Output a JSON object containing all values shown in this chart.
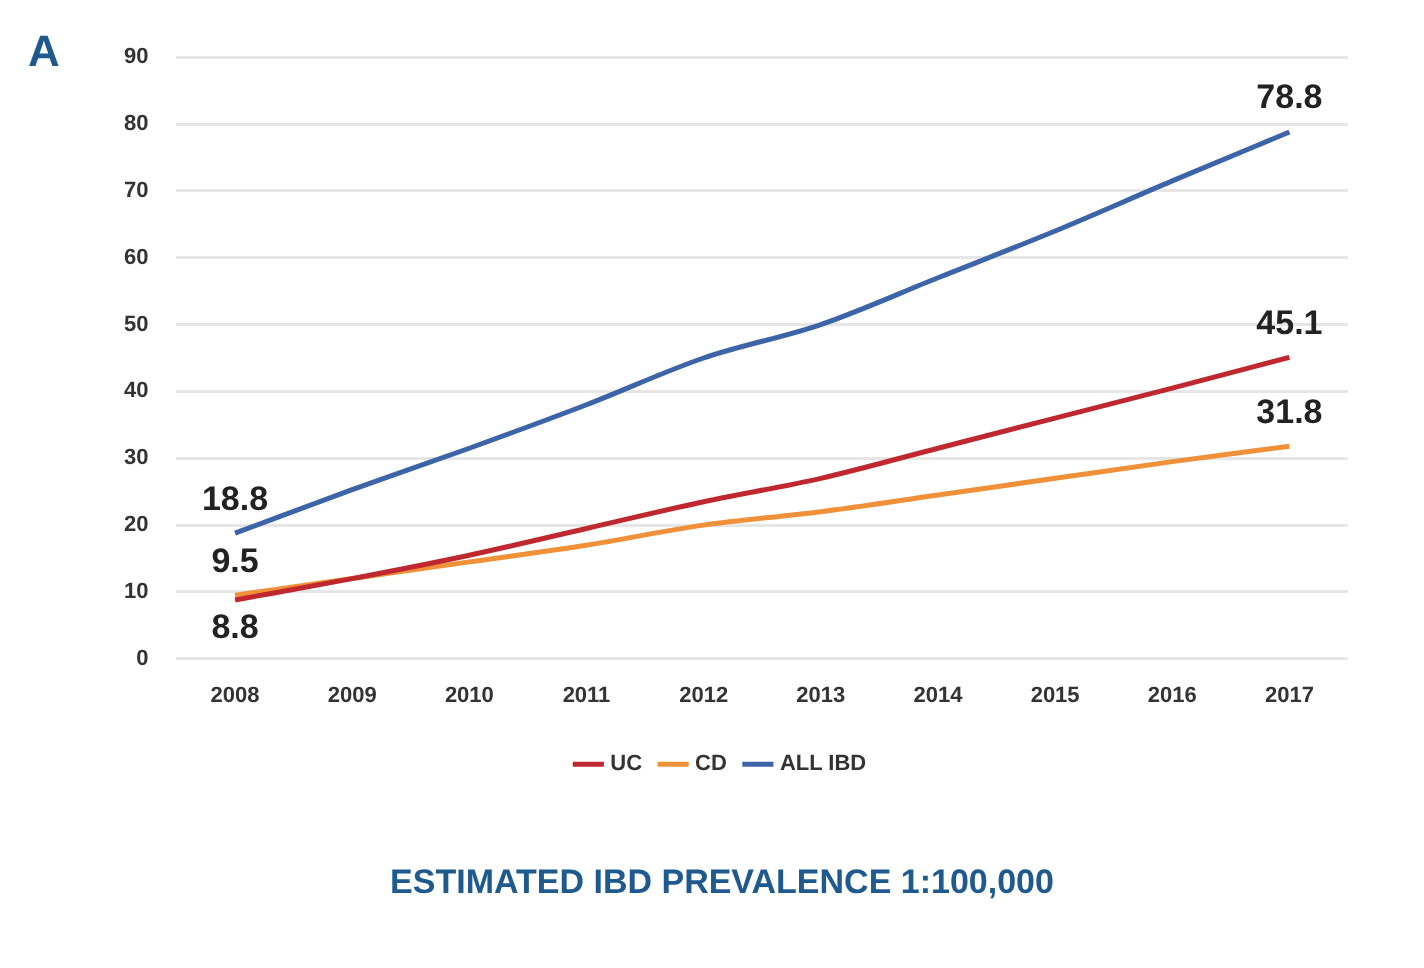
{
  "chart_data": {
    "type": "line",
    "title": "ESTIMATED IBD PREVALENCE 1:100,000",
    "annotations": [
      "A"
    ],
    "categories": [
      "2008",
      "2009",
      "2010",
      "2011",
      "2012",
      "2013",
      "2014",
      "2015",
      "2016",
      "2017"
    ],
    "series": [
      {
        "name": "UC",
        "color": "#c0282f",
        "values": [
          8.8,
          12,
          15.5,
          19.5,
          23.5,
          27,
          31.5,
          36,
          40.5,
          45.1
        ],
        "value_labels": [
          "8.8",
          null,
          null,
          null,
          null,
          null,
          null,
          null,
          null,
          "45.1"
        ]
      },
      {
        "name": "CD",
        "color": "#f0913a",
        "values": [
          9.5,
          12,
          14.5,
          17,
          20,
          22,
          24.5,
          27,
          29.5,
          31.8
        ],
        "value_labels": [
          "9.5",
          null,
          null,
          null,
          null,
          null,
          null,
          null,
          null,
          "31.8"
        ]
      },
      {
        "name": "ALL IBD",
        "color": "#3d64a8",
        "values": [
          18.8,
          25.3,
          31.5,
          38,
          45,
          50,
          57,
          64,
          71.5,
          78.8
        ],
        "value_labels": [
          "18.8",
          null,
          null,
          null,
          null,
          null,
          null,
          null,
          null,
          "78.8"
        ]
      }
    ],
    "ylim": [
      0,
      90
    ],
    "yticks": [
      0,
      10,
      20,
      30,
      40,
      50,
      60,
      70,
      80,
      90
    ],
    "grid": "y",
    "legend": "bottom",
    "marker": "none",
    "line_style": "solid"
  }
}
